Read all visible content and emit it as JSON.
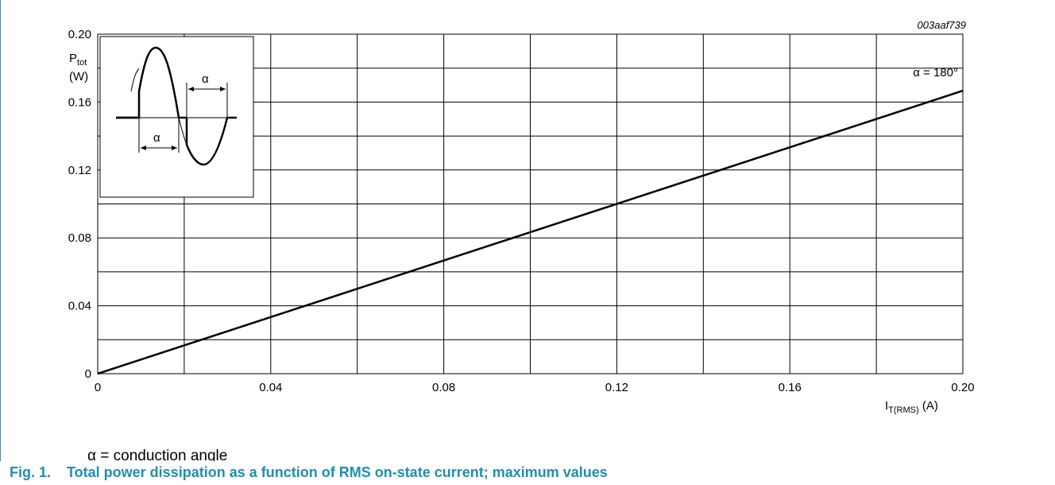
{
  "figure_id": "003aaf739",
  "note": "α = conduction angle",
  "caption": "Fig. 1.    Total power dissipation as a function of RMS on-state current; maximum values",
  "ylabel": {
    "main": "P",
    "sub": "tot",
    "unit": "(W)"
  },
  "xlabel": {
    "main": "I",
    "sub": "T(RMS)",
    "unit": "(A)"
  },
  "inset": {
    "alpha_top": "α",
    "alpha_bottom": "α"
  },
  "chart_data": {
    "type": "line",
    "title": "",
    "xlabel": "IT(RMS) (A)",
    "ylabel": "Ptot (W)",
    "xlim": [
      0,
      0.2
    ],
    "ylim": [
      0,
      0.2
    ],
    "xticks": [
      "0",
      "0.04",
      "0.08",
      "0.12",
      "0.16",
      "0.20"
    ],
    "yticks": [
      "0",
      "0.04",
      "0.08",
      "0.12",
      "0.16",
      "0.20"
    ],
    "xtick_values": [
      0,
      0.04,
      0.08,
      0.12,
      0.16,
      0.2
    ],
    "ytick_values": [
      0,
      0.04,
      0.08,
      0.12,
      0.16,
      0.2
    ],
    "grid": true,
    "series": [
      {
        "name": "α = 180°",
        "x": [
          0,
          0.2
        ],
        "y": [
          0,
          0.1667
        ]
      }
    ]
  }
}
